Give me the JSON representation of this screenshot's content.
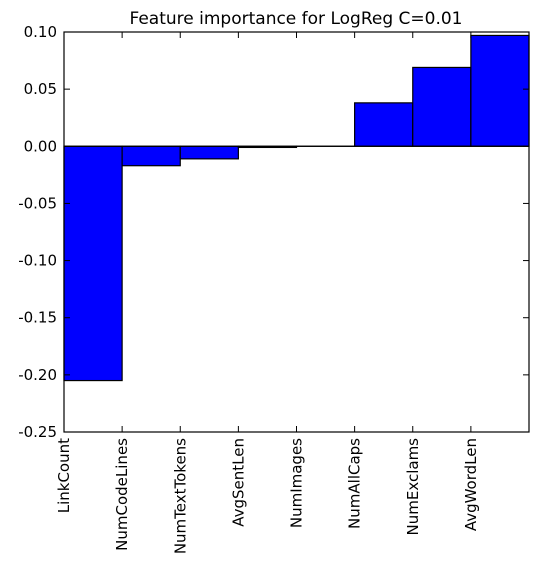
{
  "chart_data": {
    "type": "bar",
    "title": "Feature importance for LogReg C=0.01",
    "xlabel": "",
    "ylabel": "",
    "categories": [
      "LinkCount",
      "NumCodeLines",
      "NumTextTokens",
      "AvgSentLen",
      "NumImages",
      "NumAllCaps",
      "NumExclams",
      "AvgWordLen"
    ],
    "values": [
      -0.205,
      -0.017,
      -0.011,
      -0.001,
      0.0,
      0.038,
      0.069,
      0.097
    ],
    "ylim": [
      -0.25,
      0.1
    ],
    "yticks": [
      0.1,
      0.05,
      0.0,
      -0.05,
      -0.1,
      -0.15,
      -0.2,
      -0.25
    ],
    "ytick_labels": [
      "0.10",
      "0.05",
      "0.00",
      "-0.05",
      "-0.10",
      "-0.15",
      "-0.20",
      "-0.25"
    ],
    "bar_color": "#0000ff",
    "grid": false,
    "legend": "none"
  }
}
